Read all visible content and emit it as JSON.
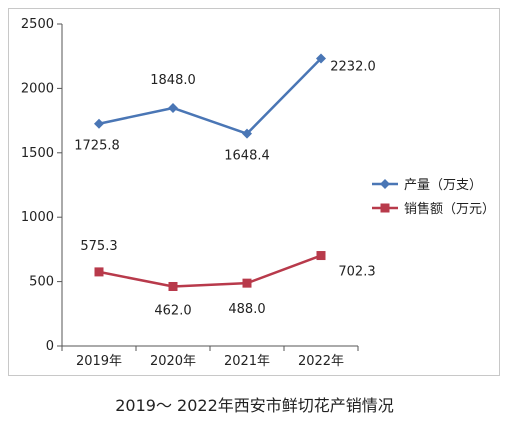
{
  "caption": "2019～ 2022年西安市鲜切花产销情况",
  "chart_data": {
    "type": "line",
    "title": "2019～ 2022年西安市鲜切花产销情况",
    "categories": [
      "2019年",
      "2020年",
      "2021年",
      "2022年"
    ],
    "ylim": [
      0,
      2500
    ],
    "yticks": [
      0,
      500,
      1000,
      1500,
      2000,
      2500
    ],
    "grid": false,
    "legend_position": "right",
    "series": [
      {
        "name": "产量（万支）",
        "values": [
          1725.8,
          1848.0,
          1648.4,
          2232.0
        ],
        "labels": [
          "1725.8",
          "1848.0",
          "1648.4",
          "2232.0"
        ],
        "color": "#4a76b5",
        "marker": "diamond"
      },
      {
        "name": "销售额（万元）",
        "values": [
          575.3,
          462.0,
          488.0,
          702.3
        ],
        "labels": [
          "575.3",
          "462.0",
          "488.0",
          "702.3"
        ],
        "color": "#b83a4b",
        "marker": "square"
      }
    ]
  }
}
